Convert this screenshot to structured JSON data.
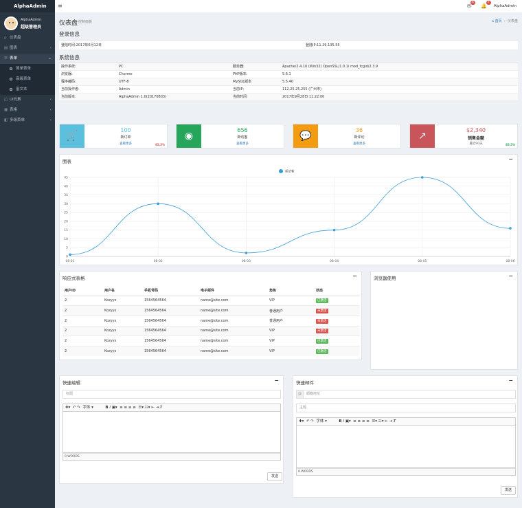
{
  "app": {
    "brand": "AlphaAdmin",
    "user_name": "AlphaAdmin",
    "user_role": "超级管理员"
  },
  "nav": [
    {
      "label": "仪表盘",
      "icon": "dashboard-icon",
      "glyph": "⌂",
      "arrow": ""
    },
    {
      "label": "图表",
      "icon": "chart-icon",
      "glyph": "▤",
      "arrow": "‹"
    },
    {
      "label": "表单",
      "icon": "form-icon",
      "glyph": "☰",
      "arrow": "⌄"
    }
  ],
  "sub_nav": [
    "简单表单",
    "高级表单",
    "富文本"
  ],
  "nav2": [
    {
      "label": "UI元素",
      "icon": "ui-icon",
      "glyph": "◫",
      "arrow": "‹"
    },
    {
      "label": "表格",
      "icon": "table-icon",
      "glyph": "▦",
      "arrow": "‹"
    },
    {
      "label": "多级菜单",
      "icon": "menu-icon",
      "glyph": "◧",
      "arrow": "‹"
    }
  ],
  "topbar": {
    "mail_count": "4",
    "bell_count": "7",
    "user": "AlphaAdmin"
  },
  "page": {
    "title": "仪表盘",
    "subtitle": "控制面板",
    "crumb_home": "首页",
    "crumb_current": "仪表盘"
  },
  "login_info": {
    "title": "登录信息",
    "time_label": "登陆时间:2017年6月12日",
    "ip_label": "登陆IP:11.29.135.55"
  },
  "system_info": {
    "title": "系统信息",
    "rows": [
      [
        "操作系统:",
        "PC",
        "服务器:",
        "Apache/2.4.10 (Win32) OpenSSL/1.0.1i mod_fcgid/2.3.9"
      ],
      [
        "浏览器:",
        "Chorme",
        "PHP版本:",
        "5.6.1"
      ],
      [
        "程序编码:",
        "UTF-8",
        "MySQL版本",
        "5.5.40"
      ],
      [
        "当前操作者:",
        "Admin",
        "当前IP:",
        "112.25.25.255 (广州市)"
      ],
      [
        "当前版本:",
        "AlphaAdmin 1.0(20170803)",
        "当前时间:",
        "2017年9月28日 11:22:00"
      ]
    ]
  },
  "stats": [
    {
      "num": "100",
      "label": "新订单",
      "more": "查看更多",
      "pct": "85.5%",
      "color": "#5bc0de",
      "num_color": "#5bc0de",
      "icon": "cart-icon",
      "glyph": "🛒"
    },
    {
      "num": "656",
      "label": "新访客",
      "more": "查看更多",
      "pct": "",
      "color": "#26a65b",
      "num_color": "#26a65b",
      "icon": "eye-icon",
      "glyph": "◉"
    },
    {
      "num": "36",
      "label": "新评论",
      "more": "查看更多",
      "pct": "",
      "color": "#f39c12",
      "num_color": "#f39c12",
      "icon": "comment-icon",
      "glyph": "💬"
    },
    {
      "num": "$2,340",
      "label": "销售金额",
      "more": "最近90天",
      "pct": "85.5%",
      "color": "#c9555a",
      "num_color": "#c9555a",
      "icon": "trend-icon",
      "glyph": "↗"
    }
  ],
  "chart_panel": {
    "title": "图表"
  },
  "chart_data": {
    "type": "line",
    "title": "",
    "categories": [
      "08-01",
      "08-02",
      "08-03",
      "08-04",
      "08-05",
      "08-06"
    ],
    "series": [
      {
        "name": "新访客",
        "values": [
          1,
          30,
          2,
          15,
          45,
          16
        ],
        "color": "#3a9fd8"
      }
    ],
    "ylim": [
      0,
      45
    ],
    "yticks": [
      "0",
      "5",
      "10",
      "15",
      "20",
      "25",
      "30",
      "35",
      "40",
      "45"
    ],
    "xlabel": "",
    "ylabel": "",
    "legend": "top-center",
    "grid": true
  },
  "table_panel": {
    "title": "响应式表格",
    "headers": [
      "用户ID",
      "用户名",
      "手机号码",
      "电子邮件",
      "角色",
      "状态"
    ],
    "rows": [
      {
        "id": "2",
        "name": "Kozyys",
        "phone": "1564564564",
        "email": "name@site.com",
        "role": "VIP",
        "status": "已激活",
        "color": "#5cb85c"
      },
      {
        "id": "2",
        "name": "Kozyys",
        "phone": "1564564564",
        "email": "name@site.com",
        "role": "普通用户",
        "status": "未激活",
        "color": "#d9534f"
      },
      {
        "id": "2",
        "name": "Kozyys",
        "phone": "1564564564",
        "email": "name@site.com",
        "role": "普通用户",
        "status": "未激活",
        "color": "#d9534f"
      },
      {
        "id": "2",
        "name": "Kozyys",
        "phone": "1564564564",
        "email": "name@site.com",
        "role": "VIP",
        "status": "未激活",
        "color": "#d9534f"
      },
      {
        "id": "2",
        "name": "Kozyys",
        "phone": "1564564564",
        "email": "name@site.com",
        "role": "VIP",
        "status": "已激活",
        "color": "#5cb85c"
      },
      {
        "id": "2",
        "name": "Kozyys",
        "phone": "1564564564",
        "email": "name@site.com",
        "role": "VIP",
        "status": "已激活",
        "color": "#5cb85c"
      }
    ]
  },
  "browser_panel": {
    "title": "浏览器使用"
  },
  "quick_edit": {
    "title": "快速编辑",
    "title_placeholder": "标题",
    "font_select": "字体",
    "word_count": "0 WORDS",
    "send": "发送"
  },
  "quick_mail": {
    "title": "快速邮件",
    "email_placeholder": "邮箱地址",
    "subject_placeholder": "主题",
    "font_select": "字体",
    "word_count": "0 WORDS",
    "send": "发送",
    "at": "@"
  }
}
